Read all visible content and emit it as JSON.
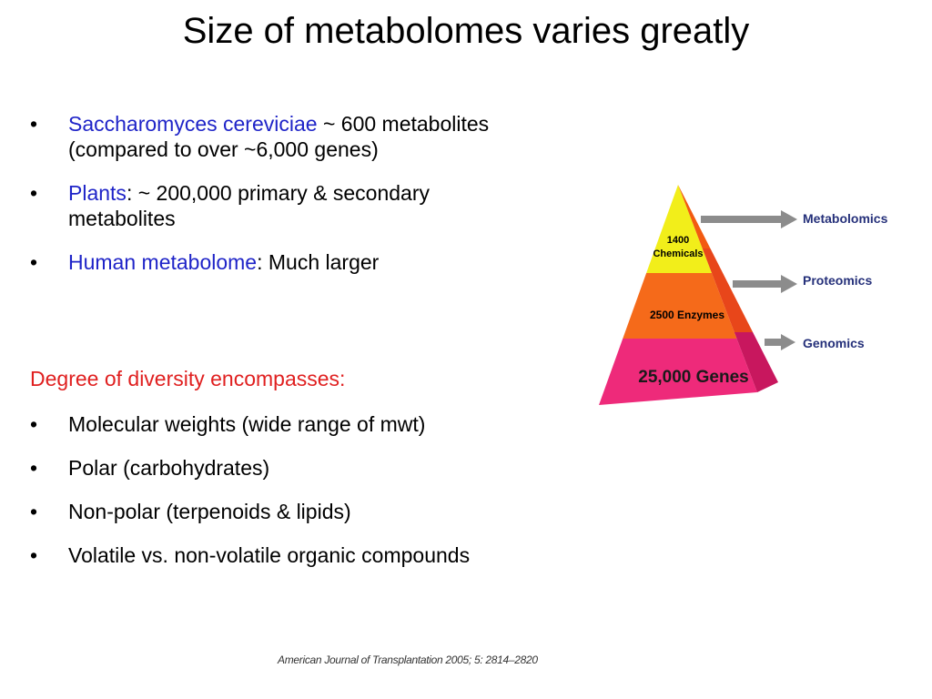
{
  "title": "Size of metabolomes varies greatly",
  "bullets": [
    {
      "highlight": "Saccharomyces cereviciae",
      "text": " ~ 600 metabolites",
      "continuation": "(compared to over ~6,000 genes)"
    },
    {
      "highlight": "Plants",
      "text": ": ~ 200,000 primary & secondary",
      "continuation": "metabolites"
    },
    {
      "highlight": "Human metabolome",
      "text": ": Much larger"
    }
  ],
  "diversity_heading": "Degree of diversity encompasses:",
  "diversity_bullets": [
    "Molecular weights (wide range of mwt)",
    "Polar (carbohydrates)",
    "Non-polar (terpenoids & lipids)",
    "Volatile vs. non-volatile organic compounds"
  ],
  "pyramid": {
    "layers": [
      [
        "1400",
        "Chemicals"
      ],
      [
        "2500 Enzymes"
      ],
      [
        "25,000 Genes"
      ]
    ],
    "levels": [
      "Metabolomics",
      "Proteomics",
      "Genomics"
    ]
  },
  "citation": "American Journal of Transplantation 2005; 5: 2814–2820"
}
